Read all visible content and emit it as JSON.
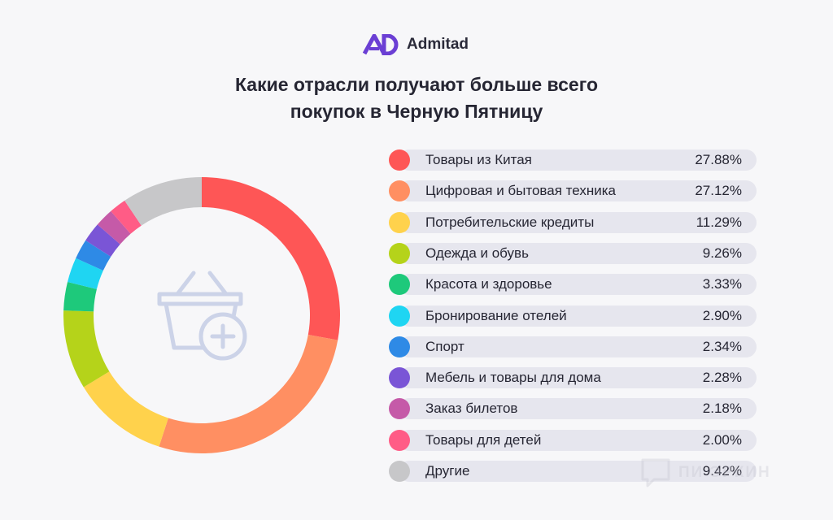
{
  "brand": {
    "name": "Admitad",
    "logo_icon": "admitad-ad-logo-icon"
  },
  "title": {
    "line1": "Какие отрасли получают больше всего",
    "line2": "покупок в Черную Пятницу"
  },
  "center_icon": "basket-plus-icon",
  "watermark": {
    "text": "ПИ ЭРКИН",
    "icon": "comment-icon"
  },
  "chart_data": {
    "type": "pie",
    "title": "Какие отрасли получают больше всего покупок в Черную Пятницу",
    "donut": true,
    "categories": [
      "Товары из Китая",
      "Цифровая и бытовая техника",
      "Потребительские кредиты",
      "Одежда и обувь",
      "Красота и здоровье",
      "Бронирование отелей",
      "Спорт",
      "Мебель и товары для дома",
      "Заказ билетов",
      "Товары для детей",
      "Другие"
    ],
    "values": [
      27.88,
      27.12,
      11.29,
      9.26,
      3.33,
      2.9,
      2.34,
      2.28,
      2.18,
      2.0,
      9.42
    ],
    "value_labels": [
      "27.88%",
      "27.12%",
      "11.29%",
      "9.26%",
      "3.33%",
      "2.90%",
      "2.34%",
      "2.28%",
      "2.18%",
      "2.00%",
      "9.42%"
    ],
    "colors": [
      "#fe5656",
      "#ff8f62",
      "#ffd24c",
      "#b5d31a",
      "#1ec97b",
      "#1fd5f2",
      "#2e8ae6",
      "#7a55d6",
      "#c55aa8",
      "#ff5c86",
      "#c7c7c9"
    ],
    "legend_position": "right"
  }
}
